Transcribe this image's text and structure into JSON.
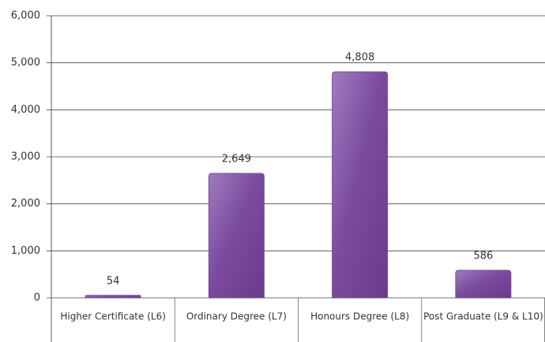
{
  "chart_data": {
    "type": "bar",
    "categories": [
      "Higher Certificate (L6)",
      "Ordinary Degree (L7)",
      "Honours Degree (L8)",
      "Post Graduate (L9 & L10)"
    ],
    "values": [
      54,
      2649,
      4808,
      586
    ],
    "value_labels": [
      "54",
      "2,649",
      "4,808",
      "586"
    ],
    "color": "#7b4c9e",
    "ylim": [
      0,
      6000
    ],
    "yticks": [
      0,
      {
        "value": 1000,
        "label": "1,000"
      },
      {
        "value": 2000,
        "label": "2,000"
      },
      {
        "value": 3000,
        "label": "3,000"
      },
      {
        "value": 4000,
        "label": "4,000"
      },
      {
        "value": 5000,
        "label": "5,000"
      },
      {
        "value": 6000,
        "label": "6,000"
      }
    ],
    "grid": true
  }
}
